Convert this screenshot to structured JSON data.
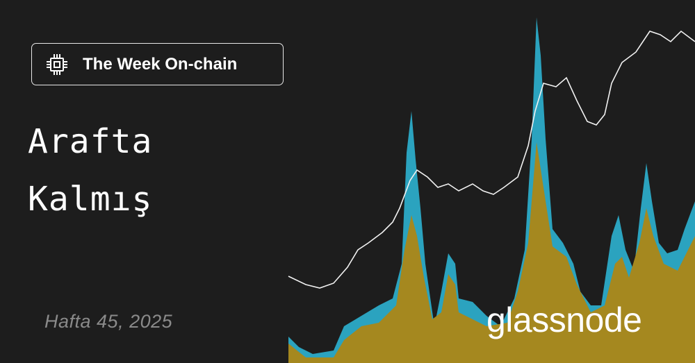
{
  "badge": {
    "label": "The Week On-chain"
  },
  "title": {
    "lines": [
      "Arafta",
      "Kalmış"
    ]
  },
  "subtitle": "Hafta 45, 2025",
  "brand": "glassnode"
}
